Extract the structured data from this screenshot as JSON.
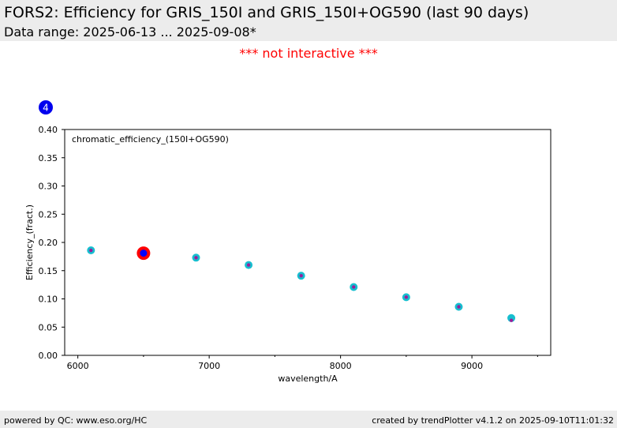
{
  "header": {
    "title": "FORS2: Efficiency for GRIS_150I and GRIS_150I+OG590 (last 90 days)",
    "subtitle": "Data range: 2025-06-13 ... 2025-09-08*"
  },
  "notice": "*** not interactive ***",
  "footer": {
    "left": "powered by QC: www.eso.org/HC",
    "right": "created by trendPlotter v4.1.2 on 2025-09-10T11:01:32"
  },
  "colors": {
    "badge": "#0000ee",
    "marker_outer": "#17becf",
    "marker_inner": "#9a1f9a",
    "highlight_outer": "#ff0000",
    "highlight_inner": "#0000ff"
  },
  "chart_data": {
    "type": "scatter",
    "badge": "4",
    "title": "chromatic_efficiency_(150I+OG590)",
    "xlabel": "wavelength/A",
    "ylabel": "Efficiency_(fract.)",
    "xlim": [
      5900,
      9600
    ],
    "ylim": [
      0.0,
      0.4
    ],
    "x_ticks": [
      6000,
      7000,
      8000,
      9000
    ],
    "x_minor_ticks": [
      6500,
      7500,
      8500,
      9500
    ],
    "y_ticks": [
      0.0,
      0.05,
      0.1,
      0.15,
      0.2,
      0.25,
      0.3,
      0.35,
      0.4
    ],
    "x_tick_labels": [
      "6000",
      "7000",
      "8000",
      "9000"
    ],
    "y_tick_labels": [
      "0.00",
      "0.05",
      "0.10",
      "0.15",
      "0.20",
      "0.25",
      "0.30",
      "0.35",
      "0.40"
    ],
    "grid": false,
    "points": [
      {
        "x": 6100,
        "y": 0.186
      },
      {
        "x": 6500,
        "y": 0.181,
        "highlight": true
      },
      {
        "x": 6900,
        "y": 0.173
      },
      {
        "x": 7300,
        "y": 0.16
      },
      {
        "x": 7700,
        "y": 0.141
      },
      {
        "x": 8100,
        "y": 0.121
      },
      {
        "x": 8500,
        "y": 0.103
      },
      {
        "x": 8900,
        "y": 0.086
      },
      {
        "x": 9300,
        "y": 0.066,
        "inner_y": 0.062
      }
    ]
  }
}
